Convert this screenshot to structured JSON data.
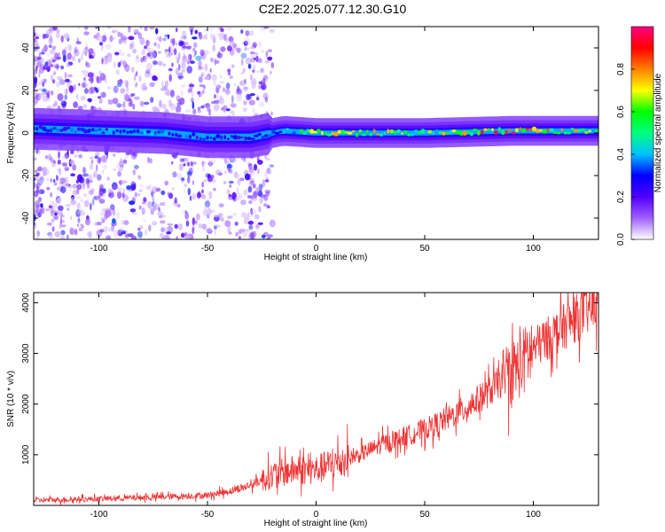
{
  "page": {
    "title": "C2E2.2025.077.12.30.G10"
  },
  "chart_data": [
    {
      "type": "heatmap",
      "xlabel": "Height of straight line (km)",
      "ylabel": "Frequency (Hz)",
      "xlim": [
        -130,
        130
      ],
      "ylim": [
        -50,
        50
      ],
      "x_ticks": [
        -100,
        -50,
        0,
        50,
        100
      ],
      "y_ticks": [
        -40,
        -20,
        0,
        20,
        40
      ],
      "colorbar": {
        "label": "Normalized spectral amplitude",
        "range": [
          0,
          1
        ],
        "ticks": [
          0.0,
          0.2,
          0.4,
          0.6,
          0.8
        ],
        "colormap": "rainbow",
        "colors": [
          "#ffffff",
          "#a060ff",
          "#5000ff",
          "#0000ff",
          "#00c0ff",
          "#00ff80",
          "#00ff00",
          "#ffff00",
          "#ff8000",
          "#ff0000",
          "#ff0080"
        ]
      },
      "ridge": {
        "description_values": [
          {
            "x": -130,
            "freq": 2,
            "amp": 0.3
          },
          {
            "x": -70,
            "freq": 0,
            "amp": 0.4
          },
          {
            "x": -50,
            "freq": -2,
            "amp": 0.3
          },
          {
            "x": -30,
            "freq": -2,
            "amp": 0.3
          },
          {
            "x": -15,
            "freq": 1,
            "amp": 0.4
          },
          {
            "x": 0,
            "freq": 0,
            "amp": 0.8
          },
          {
            "x": 20,
            "freq": 0,
            "amp": 0.8
          },
          {
            "x": 50,
            "freq": 0,
            "amp": 0.6
          },
          {
            "x": 90,
            "freq": 1,
            "amp": 0.9
          },
          {
            "x": 130,
            "freq": 1,
            "amp": 0.6
          }
        ]
      }
    },
    {
      "type": "line",
      "xlabel": "Height of straight line (km)",
      "ylabel": "SNR (10 * v/v)",
      "xlim": [
        -130,
        130
      ],
      "ylim": [
        0,
        4200
      ],
      "x_ticks": [
        -100,
        -50,
        0,
        50,
        100
      ],
      "y_ticks": [
        1000,
        2000,
        3000,
        4000
      ],
      "series": [
        {
          "color": "#ee3333",
          "x": [
            -130,
            -100,
            -75,
            -50,
            -40,
            -30,
            -20,
            -10,
            0,
            10,
            20,
            30,
            40,
            50,
            60,
            70,
            80,
            90,
            95,
            100,
            110,
            120,
            130
          ],
          "values": [
            100,
            130,
            160,
            200,
            280,
            400,
            600,
            700,
            700,
            850,
            1000,
            1200,
            1350,
            1500,
            1700,
            1950,
            2250,
            2650,
            2800,
            3100,
            3400,
            3700,
            4000
          ]
        }
      ]
    }
  ]
}
